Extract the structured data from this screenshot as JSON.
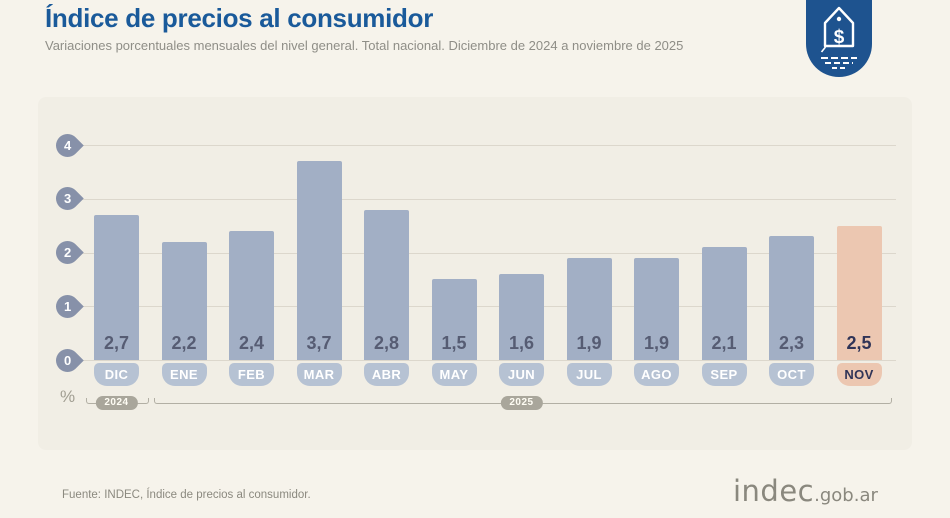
{
  "header": {
    "title": "Índice de precios al consumidor",
    "subtitle": "Variaciones porcentuales mensuales del nivel general. Total nacional. Diciembre de 2024 a noviembre de 2025"
  },
  "badge": {
    "icon": "price-tag-icon",
    "color": "#1e538f"
  },
  "chart_data": {
    "type": "bar",
    "title": "Índice de precios al consumidor",
    "subtitle": "Variaciones porcentuales mensuales del nivel general. Total nacional. Diciembre de 2024 a noviembre de 2025",
    "unit": "%",
    "categories": [
      "DIC",
      "ENE",
      "FEB",
      "MAR",
      "ABR",
      "MAY",
      "JUN",
      "JUL",
      "AGO",
      "SEP",
      "OCT",
      "NOV"
    ],
    "values": [
      2.7,
      2.2,
      2.4,
      3.7,
      2.8,
      1.5,
      1.6,
      1.9,
      1.9,
      2.1,
      2.3,
      2.5
    ],
    "value_labels": [
      "2,7",
      "2,2",
      "2,4",
      "3,7",
      "2,8",
      "1,5",
      "1,6",
      "1,9",
      "1,9",
      "2,1",
      "2,3",
      "2,5"
    ],
    "y_ticks": [
      0,
      1,
      2,
      3,
      4
    ],
    "ylim": [
      0,
      4
    ],
    "grid": true,
    "legend": false,
    "highlight_index": 11,
    "year_groups": [
      {
        "label": "2024",
        "start": 0,
        "end": 0
      },
      {
        "label": "2025",
        "start": 1,
        "end": 11
      }
    ],
    "colors": {
      "bar": "#a2afc5",
      "bar_highlight": "#ecc7b1",
      "month_tab": "#b6c2d3",
      "month_tab_highlight": "#ecc7b1",
      "value_text": "#565c73",
      "value_text_highlight": "#303457",
      "month_text": "#ffffff",
      "month_text_highlight": "#303457",
      "axis_pin": "#8791a9",
      "gridline": "#dcd7cc",
      "bracket": "#b2afa4",
      "year_pill": "#a9a69b"
    }
  },
  "footer": {
    "source": "Fuente: INDEC, Índice de precios al consumidor.",
    "logo_main": "indec",
    "logo_suffix": ".gob.ar"
  }
}
